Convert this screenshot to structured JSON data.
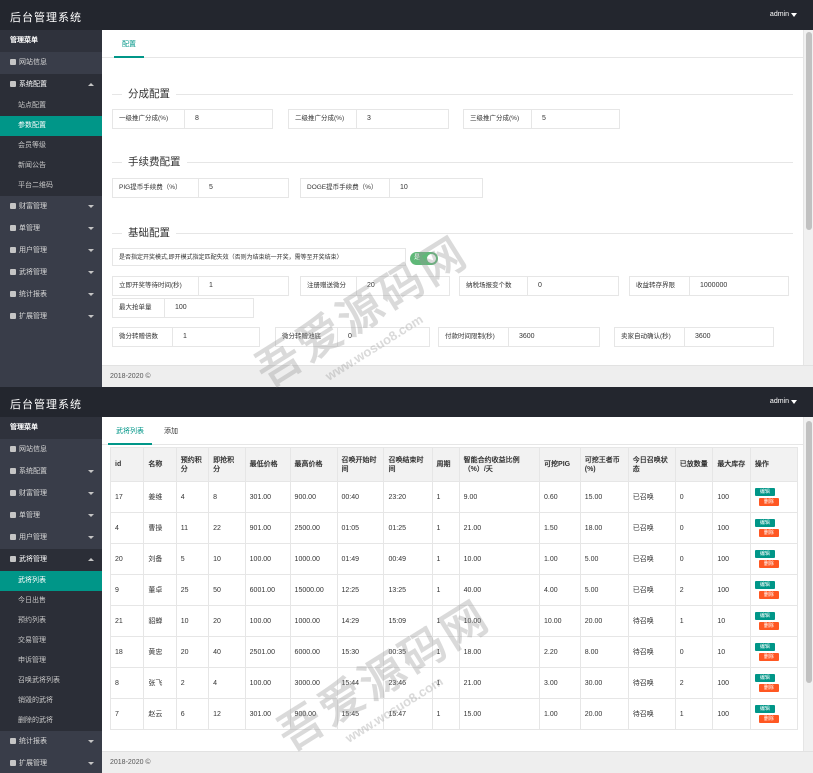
{
  "panel1": {
    "header": {
      "title": "后台管理系统",
      "user": "admin"
    },
    "sidebar": {
      "head": "管理菜单",
      "items": [
        {
          "label": "网站信息",
          "icon": "home-icon"
        },
        {
          "label": "系统配置",
          "icon": "gears-icon"
        },
        {
          "label": "财富管理",
          "icon": "wallet-icon"
        },
        {
          "label": "单管理",
          "icon": "list-icon"
        },
        {
          "label": "用户管理",
          "icon": "users-icon"
        },
        {
          "label": "武将管理",
          "icon": "list-icon"
        },
        {
          "label": "统计报表",
          "icon": "chart-icon"
        },
        {
          "label": "扩展管理",
          "icon": "wrench-icon"
        }
      ],
      "subitems": [
        "站点配置",
        "参数配置",
        "会员等级",
        "新闻公告",
        "平台二维码"
      ]
    },
    "tab": "配置",
    "sections": [
      {
        "title": "分成配置"
      },
      {
        "title": "手续费配置"
      },
      {
        "title": "基础配置"
      }
    ],
    "fields": [
      {
        "label": "一级推广分成(%)",
        "value": "8"
      },
      {
        "label": "二级推广分成(%)",
        "value": "3"
      },
      {
        "label": "三级推广分成(%)",
        "value": "5"
      },
      {
        "label": "PIG提币手续费（%）",
        "value": "5"
      },
      {
        "label": "DOGE提币手续费（%）",
        "value": "10"
      },
      {
        "label": "是否指定开奖模式,即开模式指定匹配失效（否则为结束统一开奖，需等至开奖结束）",
        "value": "是"
      },
      {
        "label": "立即开奖等待时间(秒)",
        "value": "1"
      },
      {
        "label": "注册赠送微分",
        "value": "20"
      },
      {
        "label": "纳税场报变个数",
        "value": "0"
      },
      {
        "label": "收益转存界限",
        "value": "1000000"
      },
      {
        "label": "最大抢单量",
        "value": "100"
      },
      {
        "label": "微分转赠倍数",
        "value": "1"
      },
      {
        "label": "微分转赠池底",
        "value": "0"
      },
      {
        "label": "付款时间限制(秒)",
        "value": "3600"
      },
      {
        "label": "卖家自动确认(秒)",
        "value": "3600"
      }
    ],
    "footer": "2018-2020 ©"
  },
  "panel2": {
    "header": {
      "title": "后台管理系统",
      "user": "admin"
    },
    "sidebar": {
      "head": "管理菜单",
      "items": [
        {
          "label": "网站信息",
          "icon": "home-icon"
        },
        {
          "label": "系统配置",
          "icon": "gears-icon"
        },
        {
          "label": "财富管理",
          "icon": "wallet-icon"
        },
        {
          "label": "单管理",
          "icon": "list-icon"
        },
        {
          "label": "用户管理",
          "icon": "users-icon"
        },
        {
          "label": "武将管理",
          "icon": "list-icon"
        },
        {
          "label": "统计报表",
          "icon": "chart-icon"
        },
        {
          "label": "扩展管理",
          "icon": "wrench-icon"
        }
      ],
      "subitems": [
        "武将列表",
        "今日出售",
        "预约列表",
        "交易管理",
        "申诉管理",
        "召唤武将列表",
        "销毁的武将",
        "删除的武将"
      ]
    },
    "tabs": [
      "武将列表",
      "添加"
    ],
    "table": {
      "headers": [
        "id",
        "名称",
        "预约积分",
        "即抢积分",
        "最低价格",
        "最高价格",
        "召唤开始时间",
        "召唤结束时间",
        "周期",
        "智能合约收益比例（%）/天",
        "可挖PIG",
        "可挖王者币(%)",
        "今日召唤状态",
        "已放数量",
        "最大库存",
        "操作"
      ],
      "rows": [
        [
          "17",
          "姜维",
          "4",
          "8",
          "301.00",
          "900.00",
          "00:40",
          "23:20",
          "1",
          "9.00",
          "0.60",
          "15.00",
          "已召唤",
          "0",
          "100"
        ],
        [
          "4",
          "曹操",
          "11",
          "22",
          "901.00",
          "2500.00",
          "01:05",
          "01:25",
          "1",
          "21.00",
          "1.50",
          "18.00",
          "已召唤",
          "0",
          "100"
        ],
        [
          "20",
          "刘备",
          "5",
          "10",
          "100.00",
          "1000.00",
          "01:49",
          "00:49",
          "1",
          "10.00",
          "1.00",
          "5.00",
          "已召唤",
          "0",
          "100"
        ],
        [
          "9",
          "董卓",
          "25",
          "50",
          "6001.00",
          "15000.00",
          "12:25",
          "13:25",
          "1",
          "40.00",
          "4.00",
          "5.00",
          "已召唤",
          "2",
          "100"
        ],
        [
          "21",
          "貂蝉",
          "10",
          "20",
          "100.00",
          "1000.00",
          "14:29",
          "15:09",
          "1",
          "10.00",
          "10.00",
          "20.00",
          "待召唤",
          "1",
          "10"
        ],
        [
          "18",
          "黄忠",
          "20",
          "40",
          "2501.00",
          "6000.00",
          "15:30",
          "00:35",
          "1",
          "18.00",
          "2.20",
          "8.00",
          "待召唤",
          "0",
          "10"
        ],
        [
          "8",
          "张飞",
          "2",
          "4",
          "100.00",
          "3000.00",
          "15:44",
          "23:46",
          "1",
          "21.00",
          "3.00",
          "30.00",
          "待召唤",
          "2",
          "100"
        ],
        [
          "7",
          "赵云",
          "6",
          "12",
          "301.00",
          "900.00",
          "15:45",
          "15:47",
          "1",
          "15.00",
          "1.00",
          "20.00",
          "待召唤",
          "1",
          "100"
        ]
      ],
      "edit_label": "编辑",
      "delete_label": "删除"
    },
    "footer": "2018-2020 ©"
  },
  "watermark": {
    "text": "吾爱源码网",
    "url": "www.wosuo8.com"
  },
  "colors": {
    "accent": "#009688",
    "sidebar": "#393d49",
    "header": "#23262e",
    "danger": "#ff5722",
    "switch_on": "#5fb878"
  }
}
